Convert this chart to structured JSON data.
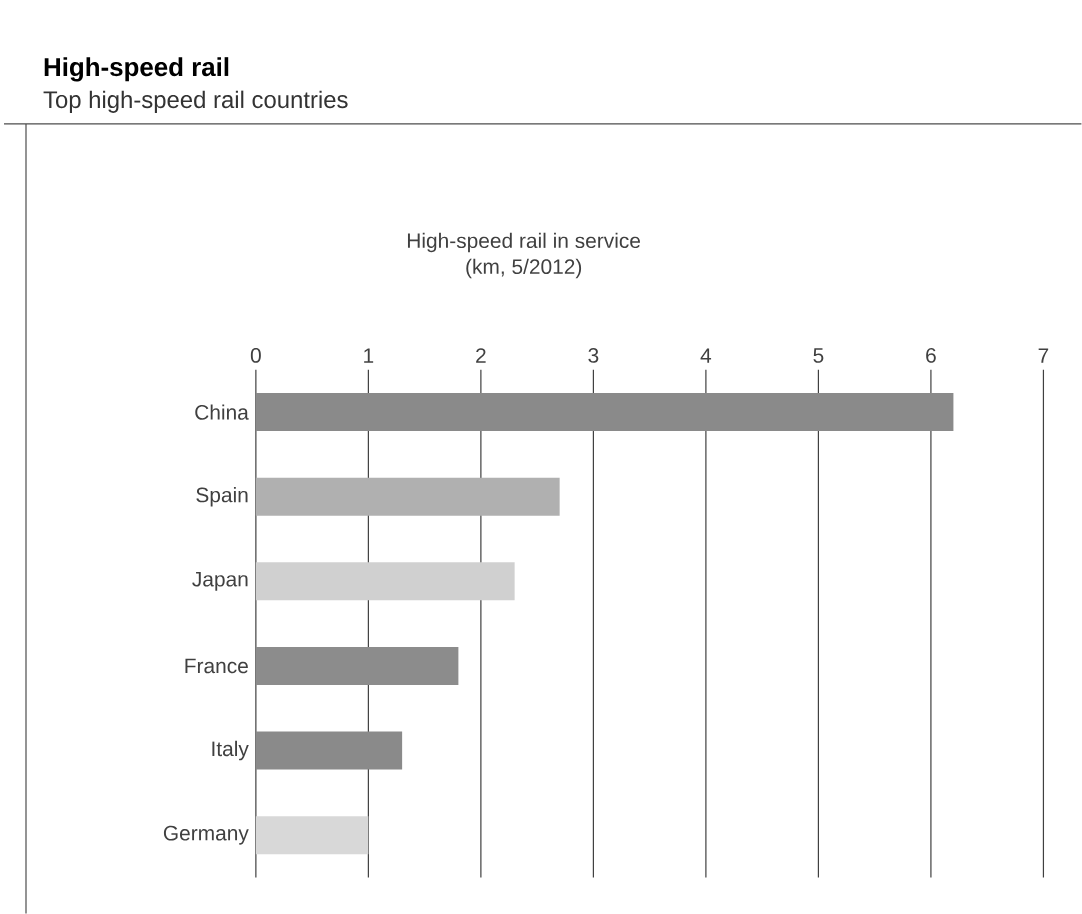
{
  "chart_data": {
    "type": "bar",
    "orientation": "horizontal",
    "title": "High-speed rail",
    "subtitle": "Top high-speed rail countries",
    "xlabel": "High-speed rail in service",
    "annotations": [
      "(km, 5/2012)"
    ],
    "categories": [
      "China",
      "Spain",
      "Japan",
      "France",
      "Italy",
      "Germany"
    ],
    "values": [
      6.2,
      2.7,
      2.3,
      1.8,
      1.3,
      1.0
    ],
    "colors": [
      "#8a8a8a",
      "#b0b0b0",
      "#d0d0d0",
      "#8c8c8c",
      "#8a8a8a",
      "#d8d8d8"
    ],
    "xlim": [
      0,
      7
    ],
    "xticks": [
      0,
      1,
      2,
      3,
      4,
      5,
      6,
      7
    ],
    "grid": "x"
  }
}
